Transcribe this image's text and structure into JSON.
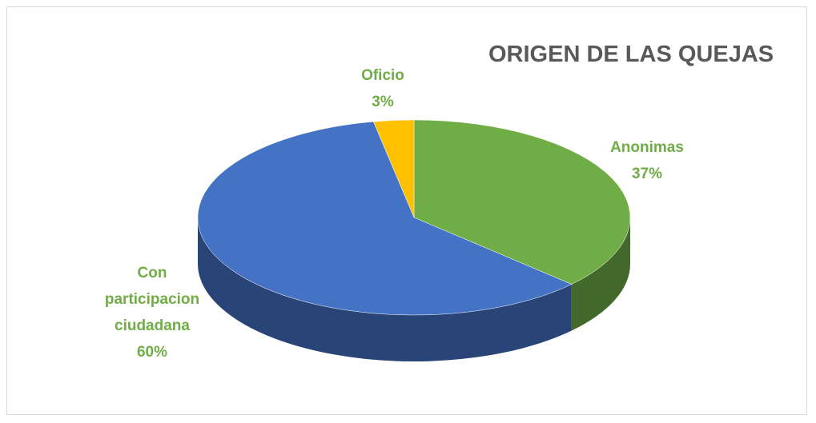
{
  "chart_data": {
    "type": "pie",
    "title": "ORIGEN DE LAS QUEJAS",
    "categories": [
      "Anonimas",
      "Con participacion ciudadana",
      "Oficio"
    ],
    "values": [
      37,
      60,
      3
    ],
    "value_labels": [
      "37%",
      "60%",
      "3%"
    ],
    "colors": [
      "#70ad47",
      "#4472c4",
      "#ffc000"
    ]
  }
}
